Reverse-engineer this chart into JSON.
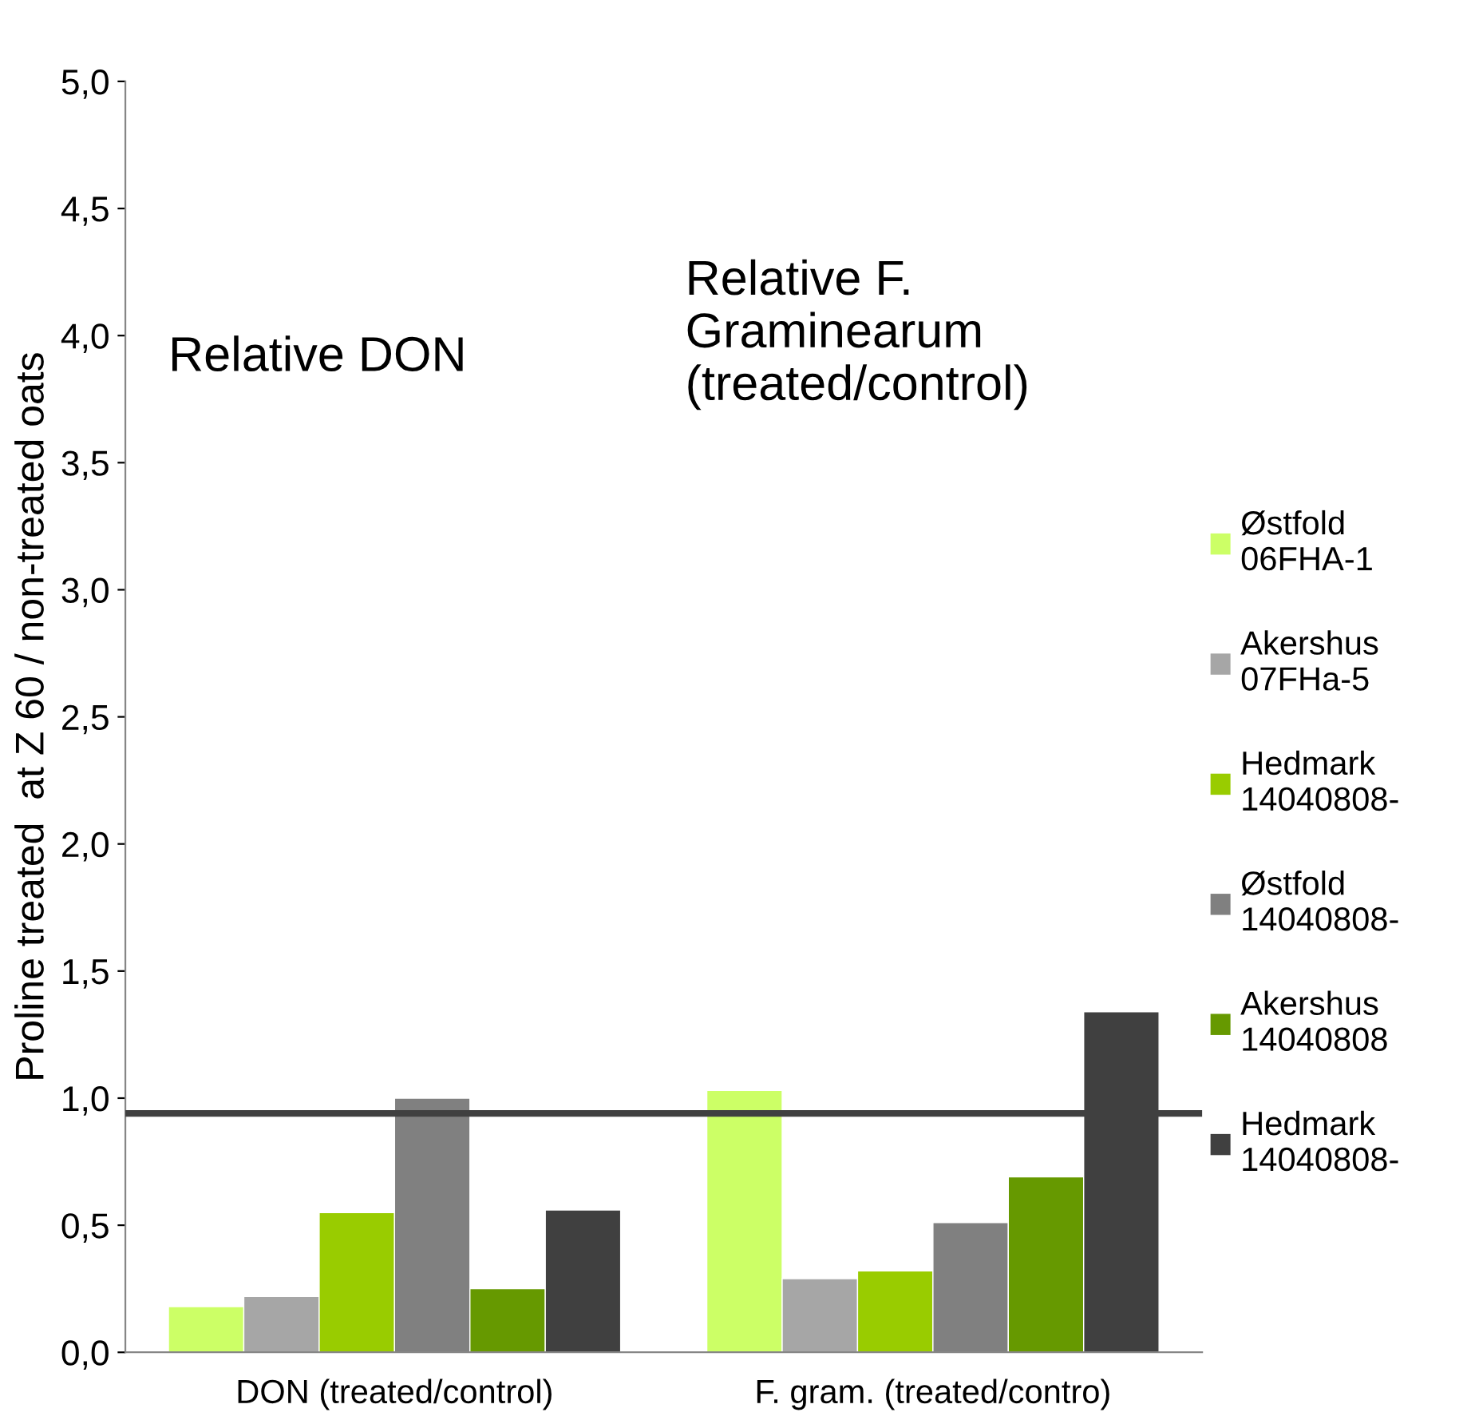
{
  "chart_data": {
    "type": "bar",
    "ylabel": "Proline treated  at Z 60 / non-treated oats",
    "categories": [
      "DON (treated/control)",
      "F. gram. (treated/contro)"
    ],
    "series": [
      {
        "name": "Østfold\n06FHA-1",
        "color": "#ccff66",
        "values": [
          0.18,
          1.03
        ]
      },
      {
        "name": "Akershus\n07FHa-5",
        "color": "#a6a6a6",
        "values": [
          0.22,
          0.29
        ]
      },
      {
        "name": "Hedmark\n14040808-",
        "color": "#99cc00",
        "values": [
          0.55,
          0.32
        ]
      },
      {
        "name": "Østfold\n14040808-",
        "color": "#808080",
        "values": [
          1.0,
          0.51
        ]
      },
      {
        "name": "Akershus\n14040808",
        "color": "#669900",
        "values": [
          0.25,
          0.69
        ]
      },
      {
        "name": "Hedmark\n14040808-",
        "color": "#404040",
        "values": [
          0.56,
          1.34
        ]
      }
    ],
    "ylim": [
      0,
      5
    ],
    "yticks": [
      {
        "value": 0,
        "label": "0,0"
      },
      {
        "value": 0.5,
        "label": "0,5"
      },
      {
        "value": 1,
        "label": "1,0"
      },
      {
        "value": 1.5,
        "label": "1,5"
      },
      {
        "value": 2,
        "label": "2,0"
      },
      {
        "value": 2.5,
        "label": "2,5"
      },
      {
        "value": 3,
        "label": "3,0"
      },
      {
        "value": 3.5,
        "label": "3,5"
      },
      {
        "value": 4,
        "label": "4,0"
      },
      {
        "value": 4.5,
        "label": "4,5"
      },
      {
        "value": 5,
        "label": "5,0"
      }
    ],
    "ref_lines": [
      {
        "axis": "y",
        "value": 0.94,
        "color": "#404040"
      }
    ],
    "annotations": [
      "Relative DON",
      "Relative F.\nGraminearum\n(treated/control)"
    ],
    "grid": false,
    "legend": "right"
  }
}
